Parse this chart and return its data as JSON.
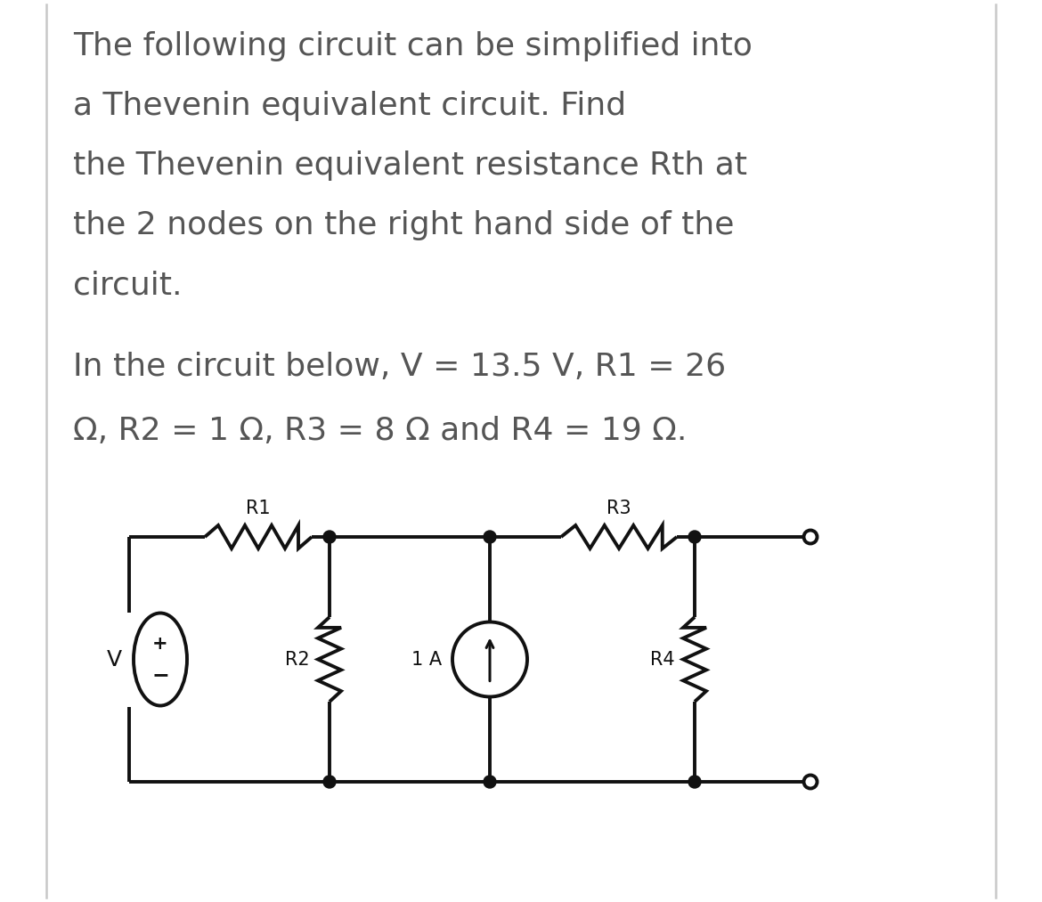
{
  "background_color": "#ffffff",
  "border_color": "#c8c8c8",
  "text_color": "#555555",
  "line_color": "#111111",
  "title_lines": [
    "The following circuit can be simplified into",
    "a Thevenin equivalent circuit. Find",
    "the Thevenin equivalent resistance Rth at",
    "the 2 nodes on the right hand side of the",
    "circuit."
  ],
  "param_line1": "In the circuit below, V = 13.5 V, R1 = 26",
  "param_line2": "Ω, R2 = 1 Ω, R3 = 8 Ω and R4 = 19 Ω.",
  "title_fontsize": 26,
  "param_fontsize": 26,
  "label_fontsize": 15,
  "fig_width": 11.7,
  "fig_height": 10.13,
  "dpi": 100
}
